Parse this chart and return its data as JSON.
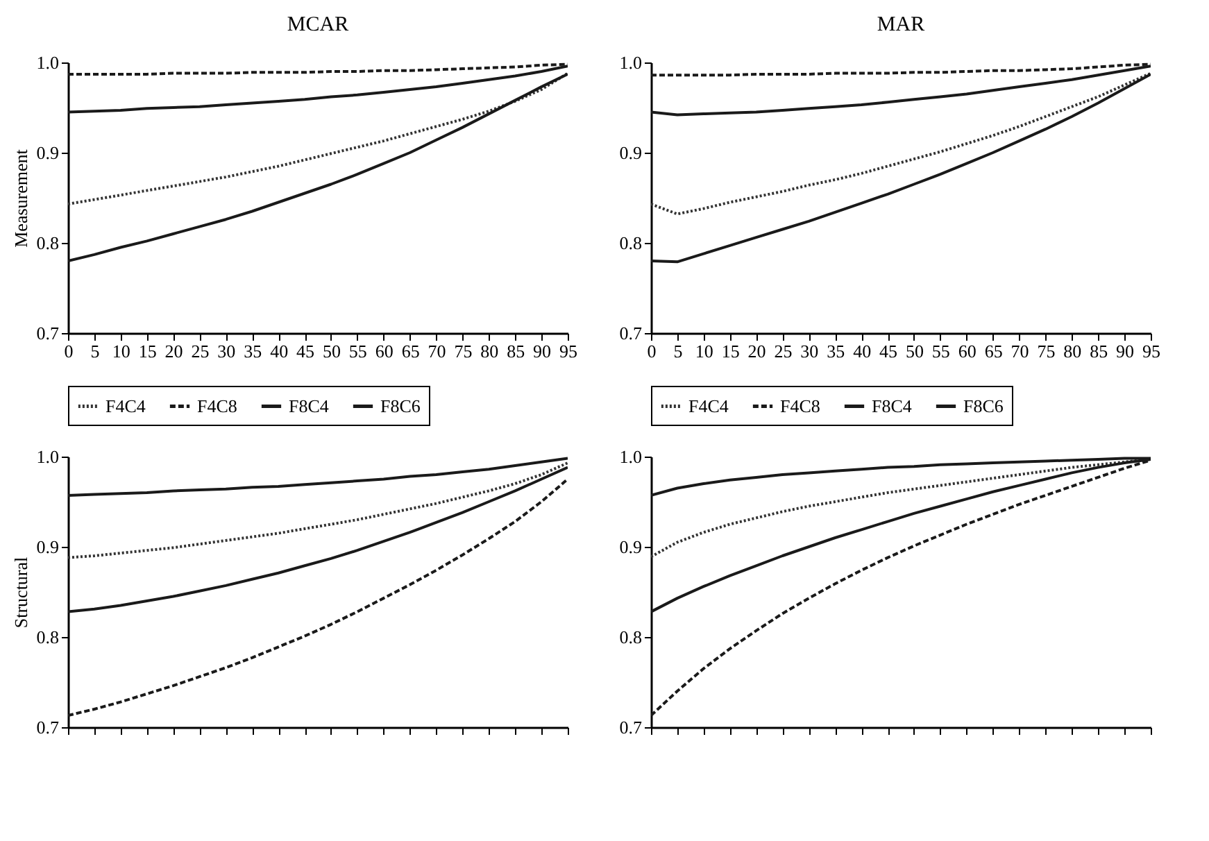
{
  "chart_data": [
    {
      "type": "line",
      "title": "MCAR",
      "ylabel": "Measurement",
      "x": [
        0,
        5,
        10,
        15,
        20,
        25,
        30,
        35,
        40,
        45,
        50,
        55,
        60,
        65,
        70,
        75,
        80,
        85,
        90,
        95
      ],
      "xlim": [
        0,
        95
      ],
      "xticks": [
        0,
        5,
        10,
        15,
        20,
        25,
        30,
        35,
        40,
        45,
        50,
        55,
        60,
        65,
        70,
        75,
        80,
        85,
        90,
        95
      ],
      "ylim": [
        0.7,
        1.0
      ],
      "yticks": [
        {
          "value": 0.7,
          "label": "0.7"
        },
        {
          "value": 0.8,
          "label": "0.8"
        },
        {
          "value": 0.9,
          "label": "0.9"
        },
        {
          "value": 1.0,
          "label": "1.0"
        }
      ],
      "legend": "bottom",
      "series": [
        {
          "name": "F4C4",
          "color": "#333333",
          "line_style": "dotted",
          "values": [
            0.843,
            0.848,
            0.853,
            0.858,
            0.863,
            0.868,
            0.873,
            0.879,
            0.885,
            0.892,
            0.899,
            0.906,
            0.913,
            0.921,
            0.929,
            0.937,
            0.946,
            0.957,
            0.97,
            0.988
          ]
        },
        {
          "name": "F4C8",
          "color": "#1a1a1a",
          "line_style": "dashed",
          "values": [
            0.987,
            0.987,
            0.987,
            0.987,
            0.988,
            0.988,
            0.988,
            0.989,
            0.989,
            0.989,
            0.99,
            0.99,
            0.991,
            0.991,
            0.992,
            0.993,
            0.994,
            0.995,
            0.997,
            0.998
          ]
        },
        {
          "name": "F8C4",
          "color": "#1a1a1a",
          "line_style": "solid",
          "values": [
            0.78,
            0.787,
            0.795,
            0.802,
            0.81,
            0.818,
            0.826,
            0.835,
            0.845,
            0.855,
            0.865,
            0.876,
            0.888,
            0.9,
            0.914,
            0.928,
            0.943,
            0.958,
            0.973,
            0.987
          ]
        },
        {
          "name": "F8C6",
          "color": "#1a1a1a",
          "line_style": "solid",
          "values": [
            0.945,
            0.946,
            0.947,
            0.949,
            0.95,
            0.951,
            0.953,
            0.955,
            0.957,
            0.959,
            0.962,
            0.964,
            0.967,
            0.97,
            0.973,
            0.977,
            0.981,
            0.985,
            0.99,
            0.996
          ]
        }
      ]
    },
    {
      "type": "line",
      "title": "MAR",
      "x": [
        0,
        5,
        10,
        15,
        20,
        25,
        30,
        35,
        40,
        45,
        50,
        55,
        60,
        65,
        70,
        75,
        80,
        85,
        90,
        95
      ],
      "xlim": [
        0,
        95
      ],
      "xticks": [
        0,
        5,
        10,
        15,
        20,
        25,
        30,
        35,
        40,
        45,
        50,
        55,
        60,
        65,
        70,
        75,
        80,
        85,
        90,
        95
      ],
      "ylim": [
        0.7,
        1.0
      ],
      "yticks": [
        {
          "value": 0.7,
          "label": "0.7"
        },
        {
          "value": 0.8,
          "label": "0.8"
        },
        {
          "value": 0.9,
          "label": "0.9"
        },
        {
          "value": 1.0,
          "label": "1.0"
        }
      ],
      "legend": "bottom",
      "series": [
        {
          "name": "F4C4",
          "color": "#333333",
          "line_style": "dotted",
          "values": [
            0.843,
            0.832,
            0.838,
            0.845,
            0.851,
            0.857,
            0.864,
            0.87,
            0.877,
            0.885,
            0.893,
            0.901,
            0.91,
            0.919,
            0.929,
            0.94,
            0.951,
            0.962,
            0.975,
            0.988
          ]
        },
        {
          "name": "F4C8",
          "color": "#1a1a1a",
          "line_style": "dashed",
          "values": [
            0.986,
            0.986,
            0.986,
            0.986,
            0.987,
            0.987,
            0.987,
            0.988,
            0.988,
            0.988,
            0.989,
            0.989,
            0.99,
            0.991,
            0.991,
            0.992,
            0.993,
            0.995,
            0.997,
            0.998
          ]
        },
        {
          "name": "F8C4",
          "color": "#1a1a1a",
          "line_style": "solid",
          "values": [
            0.78,
            0.779,
            0.788,
            0.797,
            0.806,
            0.815,
            0.824,
            0.834,
            0.844,
            0.854,
            0.865,
            0.876,
            0.888,
            0.9,
            0.913,
            0.926,
            0.94,
            0.955,
            0.971,
            0.987
          ]
        },
        {
          "name": "F8C6",
          "color": "#1a1a1a",
          "line_style": "solid",
          "values": [
            0.945,
            0.942,
            0.943,
            0.944,
            0.945,
            0.947,
            0.949,
            0.951,
            0.953,
            0.956,
            0.959,
            0.962,
            0.965,
            0.969,
            0.973,
            0.977,
            0.981,
            0.986,
            0.991,
            0.996
          ]
        }
      ]
    },
    {
      "type": "line",
      "ylabel": "Structural",
      "x": [
        0,
        5,
        10,
        15,
        20,
        25,
        30,
        35,
        40,
        45,
        50,
        55,
        60,
        65,
        70,
        75,
        80,
        85,
        90,
        95
      ],
      "xlim": [
        0,
        95
      ],
      "xticks": [
        0,
        5,
        10,
        15,
        20,
        25,
        30,
        35,
        40,
        45,
        50,
        55,
        60,
        65,
        70,
        75,
        80,
        85,
        90,
        95
      ],
      "ylim": [
        0.7,
        1.0
      ],
      "yticks": [
        {
          "value": 0.7,
          "label": "0.7"
        },
        {
          "value": 0.8,
          "label": "0.8"
        },
        {
          "value": 0.9,
          "label": "0.9"
        },
        {
          "value": 1.0,
          "label": "1.0"
        }
      ],
      "tick_labels": "y",
      "series": [
        {
          "color": "#333333",
          "line_style": "dotted",
          "values": [
            0.888,
            0.89,
            0.893,
            0.896,
            0.899,
            0.903,
            0.907,
            0.911,
            0.915,
            0.92,
            0.925,
            0.93,
            0.936,
            0.942,
            0.948,
            0.955,
            0.962,
            0.97,
            0.98,
            0.993
          ]
        },
        {
          "color": "#1a1a1a",
          "line_style": "dashed",
          "values": [
            0.713,
            0.72,
            0.728,
            0.737,
            0.746,
            0.756,
            0.766,
            0.777,
            0.789,
            0.801,
            0.814,
            0.828,
            0.843,
            0.858,
            0.874,
            0.891,
            0.909,
            0.928,
            0.95,
            0.975
          ]
        },
        {
          "color": "#1a1a1a",
          "line_style": "solid",
          "values": [
            0.957,
            0.958,
            0.959,
            0.96,
            0.962,
            0.963,
            0.964,
            0.966,
            0.967,
            0.969,
            0.971,
            0.973,
            0.975,
            0.978,
            0.98,
            0.983,
            0.986,
            0.99,
            0.994,
            0.998
          ]
        },
        {
          "color": "#1a1a1a",
          "line_style": "solid",
          "values": [
            0.828,
            0.831,
            0.835,
            0.84,
            0.845,
            0.851,
            0.857,
            0.864,
            0.871,
            0.879,
            0.887,
            0.896,
            0.906,
            0.916,
            0.927,
            0.938,
            0.95,
            0.962,
            0.975,
            0.988
          ]
        }
      ]
    },
    {
      "type": "line",
      "x": [
        0,
        5,
        10,
        15,
        20,
        25,
        30,
        35,
        40,
        45,
        50,
        55,
        60,
        65,
        70,
        75,
        80,
        85,
        90,
        95
      ],
      "xlim": [
        0,
        95
      ],
      "xticks": [
        0,
        5,
        10,
        15,
        20,
        25,
        30,
        35,
        40,
        45,
        50,
        55,
        60,
        65,
        70,
        75,
        80,
        85,
        90,
        95
      ],
      "ylim": [
        0.7,
        1.0
      ],
      "yticks": [
        {
          "value": 0.7,
          "label": "0.7"
        },
        {
          "value": 0.8,
          "label": "0.8"
        },
        {
          "value": 0.9,
          "label": "0.9"
        },
        {
          "value": 1.0,
          "label": "1.0"
        }
      ],
      "tick_labels": "y",
      "series": [
        {
          "color": "#333333",
          "line_style": "dotted",
          "values": [
            0.889,
            0.905,
            0.916,
            0.925,
            0.932,
            0.939,
            0.945,
            0.95,
            0.955,
            0.96,
            0.964,
            0.968,
            0.972,
            0.976,
            0.98,
            0.984,
            0.988,
            0.991,
            0.994,
            0.997
          ]
        },
        {
          "color": "#1a1a1a",
          "line_style": "dashed",
          "values": [
            0.713,
            0.74,
            0.765,
            0.787,
            0.807,
            0.826,
            0.843,
            0.859,
            0.874,
            0.888,
            0.901,
            0.913,
            0.925,
            0.936,
            0.947,
            0.957,
            0.967,
            0.977,
            0.987,
            0.996
          ]
        },
        {
          "color": "#1a1a1a",
          "line_style": "solid",
          "values": [
            0.957,
            0.965,
            0.97,
            0.974,
            0.977,
            0.98,
            0.982,
            0.984,
            0.986,
            0.988,
            0.989,
            0.991,
            0.992,
            0.993,
            0.994,
            0.995,
            0.996,
            0.997,
            0.998,
            0.998
          ]
        },
        {
          "color": "#1a1a1a",
          "line_style": "solid",
          "values": [
            0.828,
            0.843,
            0.856,
            0.868,
            0.879,
            0.89,
            0.9,
            0.91,
            0.919,
            0.928,
            0.937,
            0.945,
            0.953,
            0.961,
            0.968,
            0.975,
            0.982,
            0.988,
            0.993,
            0.997
          ]
        }
      ]
    }
  ]
}
